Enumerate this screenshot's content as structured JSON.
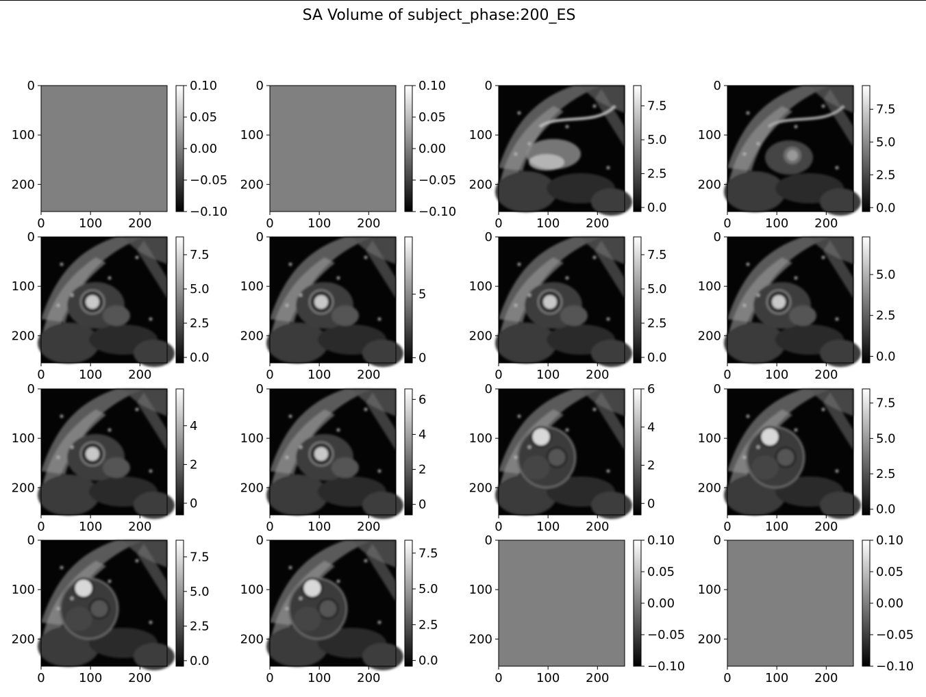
{
  "title": "SA Volume of subject_phase:200_ES",
  "chart_data": [
    {
      "type": "heatmap",
      "slice": 0,
      "image": "blank",
      "xticks": [
        0,
        100,
        200
      ],
      "yticks": [
        0,
        100,
        200
      ],
      "image_extent": [
        0,
        255
      ],
      "colorbar": {
        "min": -0.1,
        "max": 0.1,
        "ticks": [
          "0.10",
          "0.05",
          "0.00",
          "−0.05",
          "−0.10"
        ]
      }
    },
    {
      "type": "heatmap",
      "slice": 1,
      "image": "blank",
      "xticks": [
        0,
        100,
        200
      ],
      "yticks": [
        0,
        100,
        200
      ],
      "image_extent": [
        0,
        255
      ],
      "colorbar": {
        "min": -0.1,
        "max": 0.1,
        "ticks": [
          "0.10",
          "0.05",
          "0.00",
          "−0.05",
          "−0.10"
        ]
      }
    },
    {
      "type": "heatmap",
      "slice": 2,
      "image": "mri-basal-atria",
      "xticks": [
        0,
        100,
        200
      ],
      "yticks": [
        0,
        100,
        200
      ],
      "image_extent": [
        0,
        255
      ],
      "colorbar": {
        "min": -0.3,
        "max": 9.0,
        "ticks": [
          "7.5",
          "5.0",
          "2.5",
          "0.0"
        ]
      }
    },
    {
      "type": "heatmap",
      "slice": 3,
      "image": "mri-basal",
      "xticks": [
        0,
        100,
        200
      ],
      "yticks": [
        0,
        100,
        200
      ],
      "image_extent": [
        0,
        255
      ],
      "colorbar": {
        "min": -0.3,
        "max": 9.3,
        "ticks": [
          "7.5",
          "5.0",
          "2.5",
          "0.0"
        ]
      }
    },
    {
      "type": "heatmap",
      "slice": 4,
      "image": "mri-ventricle",
      "xticks": [
        0,
        100,
        200
      ],
      "yticks": [
        0,
        100,
        200
      ],
      "image_extent": [
        0,
        255
      ],
      "colorbar": {
        "min": -0.4,
        "max": 8.8,
        "ticks": [
          "7.5",
          "5.0",
          "2.5",
          "0.0"
        ]
      }
    },
    {
      "type": "heatmap",
      "slice": 5,
      "image": "mri-ventricle",
      "xticks": [
        0,
        100,
        200
      ],
      "yticks": [
        0,
        100,
        200
      ],
      "image_extent": [
        0,
        255
      ],
      "colorbar": {
        "min": -0.4,
        "max": 9.5,
        "ticks": [
          "5",
          "0"
        ]
      }
    },
    {
      "type": "heatmap",
      "slice": 6,
      "image": "mri-ventricle",
      "xticks": [
        0,
        100,
        200
      ],
      "yticks": [
        0,
        100,
        200
      ],
      "image_extent": [
        0,
        255
      ],
      "colorbar": {
        "min": -0.4,
        "max": 8.8,
        "ticks": [
          "7.5",
          "5.0",
          "2.5",
          "0.0"
        ]
      }
    },
    {
      "type": "heatmap",
      "slice": 7,
      "image": "mri-ventricle",
      "xticks": [
        0,
        100,
        200
      ],
      "yticks": [
        0,
        100,
        200
      ],
      "image_extent": [
        0,
        255
      ],
      "colorbar": {
        "min": -0.4,
        "max": 7.3,
        "ticks": [
          "5.0",
          "2.5",
          "0.0"
        ]
      }
    },
    {
      "type": "heatmap",
      "slice": 8,
      "image": "mri-ventricle",
      "xticks": [
        0,
        100,
        200
      ],
      "yticks": [
        0,
        100,
        200
      ],
      "image_extent": [
        0,
        255
      ],
      "colorbar": {
        "min": -0.6,
        "max": 5.9,
        "ticks": [
          "4",
          "2",
          "0"
        ]
      }
    },
    {
      "type": "heatmap",
      "slice": 9,
      "image": "mri-ventricle",
      "xticks": [
        0,
        100,
        200
      ],
      "yticks": [
        0,
        100,
        200
      ],
      "image_extent": [
        0,
        255
      ],
      "colorbar": {
        "min": -0.6,
        "max": 6.6,
        "ticks": [
          "6",
          "4",
          "2",
          "0"
        ]
      }
    },
    {
      "type": "heatmap",
      "slice": 10,
      "image": "mri-apex",
      "xticks": [
        0,
        100,
        200
      ],
      "yticks": [
        0,
        100,
        200
      ],
      "image_extent": [
        0,
        255
      ],
      "colorbar": {
        "min": -0.6,
        "max": 6.0,
        "ticks": [
          "6",
          "4",
          "2",
          "0"
        ]
      }
    },
    {
      "type": "heatmap",
      "slice": 11,
      "image": "mri-apex",
      "xticks": [
        0,
        100,
        200
      ],
      "yticks": [
        0,
        100,
        200
      ],
      "image_extent": [
        0,
        255
      ],
      "colorbar": {
        "min": -0.4,
        "max": 8.5,
        "ticks": [
          "7.5",
          "5.0",
          "2.5",
          "0.0"
        ]
      }
    },
    {
      "type": "heatmap",
      "slice": 12,
      "image": "mri-apex",
      "xticks": [
        0,
        100,
        200
      ],
      "yticks": [
        0,
        100,
        200
      ],
      "image_extent": [
        0,
        255
      ],
      "colorbar": {
        "min": -0.4,
        "max": 8.7,
        "ticks": [
          "7.5",
          "5.0",
          "2.5",
          "0.0"
        ]
      }
    },
    {
      "type": "heatmap",
      "slice": 13,
      "image": "mri-apex",
      "xticks": [
        0,
        100,
        200
      ],
      "yticks": [
        0,
        100,
        200
      ],
      "image_extent": [
        0,
        255
      ],
      "colorbar": {
        "min": -0.4,
        "max": 8.4,
        "ticks": [
          "7.5",
          "5.0",
          "2.5",
          "0.0"
        ]
      }
    },
    {
      "type": "heatmap",
      "slice": 14,
      "image": "blank",
      "xticks": [
        0,
        100,
        200
      ],
      "yticks": [
        0,
        100,
        200
      ],
      "image_extent": [
        0,
        255
      ],
      "colorbar": {
        "min": -0.1,
        "max": 0.1,
        "ticks": [
          "0.10",
          "0.05",
          "0.00",
          "−0.05",
          "−0.10"
        ]
      }
    },
    {
      "type": "heatmap",
      "slice": 15,
      "image": "blank",
      "xticks": [
        0,
        100,
        200
      ],
      "yticks": [
        0,
        100,
        200
      ],
      "image_extent": [
        0,
        255
      ],
      "colorbar": {
        "min": -0.1,
        "max": 0.1,
        "ticks": [
          "0.10",
          "0.05",
          "0.00",
          "−0.05",
          "−0.10"
        ]
      }
    }
  ],
  "colors": {
    "blank_image": "#808080",
    "axis": "#000000",
    "background": "#ffffff"
  }
}
